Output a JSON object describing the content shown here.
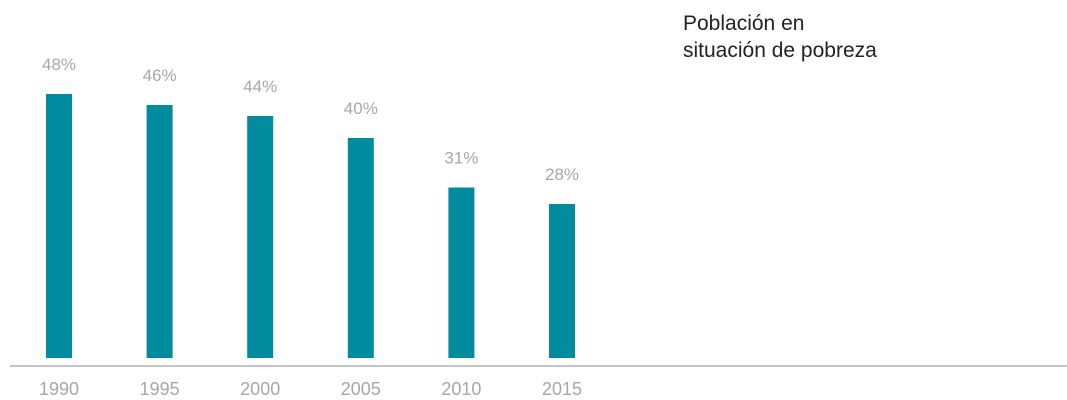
{
  "chart_data": {
    "type": "bar",
    "title": "Población en\nsituación de pobreza",
    "categories": [
      "1990",
      "1995",
      "2000",
      "2005",
      "2010",
      "2015"
    ],
    "values": [
      48,
      46,
      44,
      40,
      31,
      28
    ],
    "data_labels": [
      "48%",
      "46%",
      "44%",
      "40%",
      "31%",
      "28%"
    ],
    "ylim": [
      0,
      48
    ],
    "grid": false,
    "legend": "none",
    "xlabel": "",
    "ylabel": ""
  },
  "colors": {
    "bar": "#008C9E",
    "label": "#a7a7a7",
    "axis": "#8a8a8a",
    "title": "#222222"
  }
}
